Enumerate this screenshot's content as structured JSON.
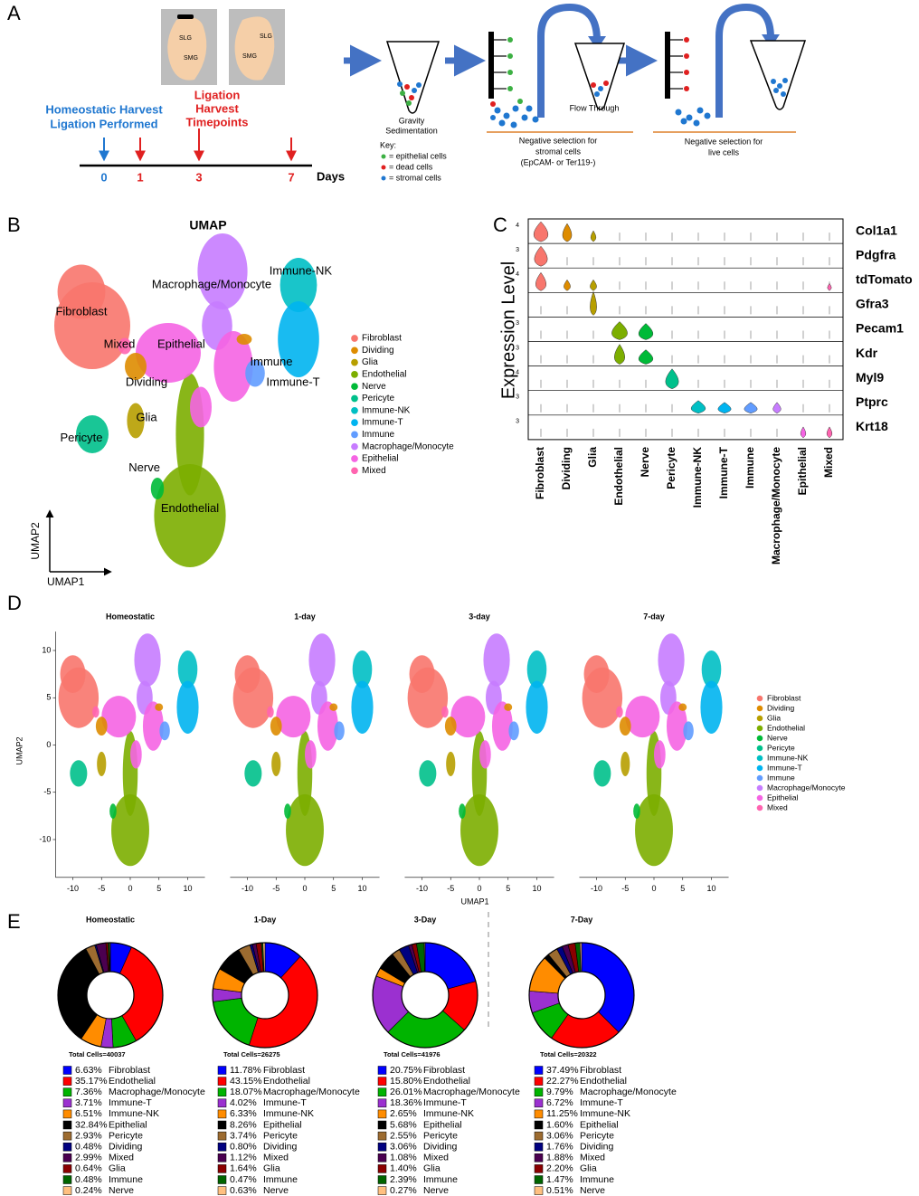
{
  "panel_labels": [
    "A",
    "B",
    "C",
    "D",
    "E"
  ],
  "panel_a": {
    "gland_labels": [
      "SLG",
      "SMG",
      "SLG",
      "SMG"
    ],
    "homeostatic_label": [
      "Homeostatic Harvest",
      "Ligation Performed"
    ],
    "ligation_label": [
      "Ligation",
      "Harvest",
      "Timepoints"
    ],
    "days": [
      0,
      1,
      3,
      7
    ],
    "days_unit": "Days",
    "gravity": [
      "Gravity",
      "Sedimentation"
    ],
    "flow_through": "Flow Through",
    "key_title": "Key:",
    "key": [
      "= epithelial cells",
      "= dead cells",
      "= stromal cells"
    ],
    "selection1": [
      "Negative selection for",
      "stromal cells",
      "(EpCAM- or Ter119-)"
    ],
    "selection2": [
      "Negative selection for",
      "live cells"
    ]
  },
  "clusters": {
    "names": [
      "Fibroblast",
      "Dividing",
      "Glia",
      "Endothelial",
      "Nerve",
      "Pericyte",
      "Immune-NK",
      "Immune-T",
      "Immune",
      "Macrophage/Monocyte",
      "Epithelial",
      "Mixed"
    ],
    "colors": [
      "#F8766D",
      "#DE8C00",
      "#B79F00",
      "#7CAE00",
      "#00BA38",
      "#00C08B",
      "#00BFC4",
      "#00B4F0",
      "#619CFF",
      "#C77CFF",
      "#F564E3",
      "#FF64B0"
    ]
  },
  "panel_b": {
    "title": "UMAP",
    "x_label": "UMAP1",
    "y_label": "UMAP2"
  },
  "panel_c": {
    "y_label": "Expression Level",
    "genes": [
      "Col1a1",
      "Pdgfra",
      "tdTomato",
      "Gfra3",
      "Pecam1",
      "Kdr",
      "Myl9",
      "Ptprc",
      "Krt18"
    ],
    "gene_ticks": [
      4,
      3,
      4,
      null,
      3,
      3,
      4,
      3,
      3
    ]
  },
  "panel_d": {
    "titles": [
      "Homeostatic",
      "1-day",
      "3-day",
      "7-day"
    ],
    "xlim": [
      -13,
      13
    ],
    "ylim": [
      -14,
      12
    ],
    "xticks": [
      -10,
      -5,
      0,
      5,
      10
    ],
    "yticks": [
      -10,
      -5,
      0,
      5,
      10
    ],
    "x_label": "UMAP1",
    "y_label": "UMAP2"
  },
  "chart_data": [
    {
      "type": "pie",
      "title": "Homeostatic",
      "total_label": "Total Cells=40037",
      "categories": [
        "Fibroblast",
        "Endothelial",
        "Macrophage/Monocyte",
        "Immune-T",
        "Immune-NK",
        "Epithelial",
        "Pericyte",
        "Dividing",
        "Mixed",
        "Glia",
        "Immune",
        "Nerve"
      ],
      "values": [
        6.63,
        35.17,
        7.36,
        3.71,
        6.51,
        32.84,
        2.93,
        0.48,
        2.99,
        0.64,
        0.48,
        0.24
      ],
      "value_labels": [
        "6.63%",
        "35.17%",
        "7.36%",
        "3.71%",
        "6.51%",
        "32.84%",
        "2.93%",
        "0.48%",
        "2.99%",
        "0.64%",
        "0.48%",
        "0.24%"
      ],
      "colors": [
        "#0000ff",
        "#ff0000",
        "#00b400",
        "#9b30d0",
        "#ff8c00",
        "#000000",
        "#9c6b30",
        "#000080",
        "#4b0050",
        "#8b0000",
        "#006400",
        "#ffc080"
      ]
    },
    {
      "type": "pie",
      "title": "1-Day",
      "total_label": "Total Cells=26275",
      "categories": [
        "Fibroblast",
        "Endothelial",
        "Macrophage/Monocyte",
        "Immune-T",
        "Immune-NK",
        "Epithelial",
        "Pericyte",
        "Dividing",
        "Mixed",
        "Glia",
        "Immune",
        "Nerve"
      ],
      "values": [
        11.78,
        43.15,
        18.07,
        4.02,
        6.33,
        8.26,
        3.74,
        0.8,
        1.12,
        1.64,
        0.47,
        0.63
      ],
      "value_labels": [
        "11.78%",
        "43.15%",
        "18.07%",
        "4.02%",
        "6.33%",
        "8.26%",
        "3.74%",
        "0.80%",
        "1.12%",
        "1.64%",
        "0.47%",
        "0.63%"
      ],
      "colors": [
        "#0000ff",
        "#ff0000",
        "#00b400",
        "#9b30d0",
        "#ff8c00",
        "#000000",
        "#9c6b30",
        "#000080",
        "#4b0050",
        "#8b0000",
        "#006400",
        "#ffc080"
      ]
    },
    {
      "type": "pie",
      "title": "3-Day",
      "total_label": "Total Cells=41976",
      "categories": [
        "Fibroblast",
        "Endothelial",
        "Macrophage/Monocyte",
        "Immune-T",
        "Immune-NK",
        "Epithelial",
        "Pericyte",
        "Dividing",
        "Mixed",
        "Glia",
        "Immune",
        "Nerve"
      ],
      "values": [
        20.75,
        15.8,
        26.01,
        18.36,
        2.65,
        5.68,
        2.55,
        3.06,
        1.08,
        1.4,
        2.39,
        0.27
      ],
      "value_labels": [
        "20.75%",
        "15.80%",
        "26.01%",
        "18.36%",
        "2.65%",
        "5.68%",
        "2.55%",
        "3.06%",
        "1.08%",
        "1.40%",
        "2.39%",
        "0.27%"
      ],
      "colors": [
        "#0000ff",
        "#ff0000",
        "#00b400",
        "#9b30d0",
        "#ff8c00",
        "#000000",
        "#9c6b30",
        "#000080",
        "#4b0050",
        "#8b0000",
        "#006400",
        "#ffc080"
      ]
    },
    {
      "type": "pie",
      "title": "7-Day",
      "total_label": "Total Cells=20322",
      "categories": [
        "Fibroblast",
        "Endothelial",
        "Macrophage/Monocyte",
        "Immune-T",
        "Immune-NK",
        "Epithelial",
        "Pericyte",
        "Dividing",
        "Mixed",
        "Glia",
        "Immune",
        "Nerve"
      ],
      "values": [
        37.49,
        22.27,
        9.79,
        6.72,
        11.25,
        1.6,
        3.06,
        1.76,
        1.88,
        2.2,
        1.47,
        0.51
      ],
      "value_labels": [
        "37.49%",
        "22.27%",
        "9.79%",
        "6.72%",
        "11.25%",
        "1.60%",
        "3.06%",
        "1.76%",
        "1.88%",
        "2.20%",
        "1.47%",
        "0.51%"
      ],
      "colors": [
        "#0000ff",
        "#ff0000",
        "#00b400",
        "#9b30d0",
        "#ff8c00",
        "#000000",
        "#9c6b30",
        "#000080",
        "#4b0050",
        "#8b0000",
        "#006400",
        "#ffc080"
      ]
    }
  ]
}
